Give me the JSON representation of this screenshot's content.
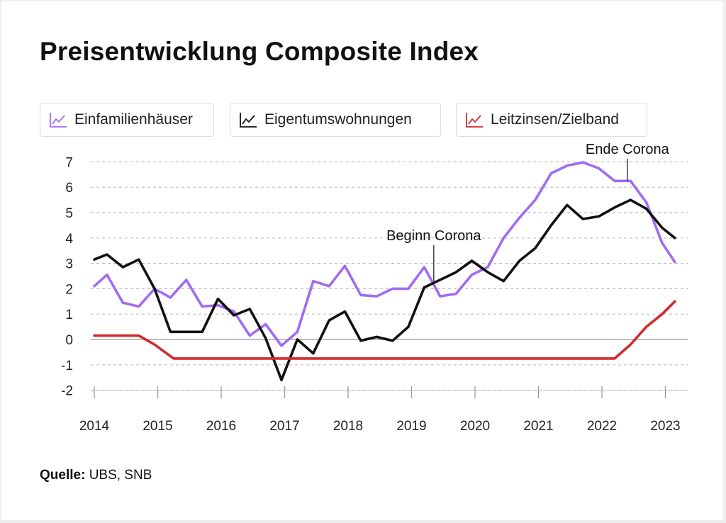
{
  "title": "Preisentwicklung Composite Index",
  "legend": [
    {
      "label": "Einfamilienhäuser",
      "color": "#a06cf2",
      "icon": "line-chart-icon"
    },
    {
      "label": "Eigentumswohnungen",
      "color": "#111111",
      "icon": "line-chart-icon"
    },
    {
      "label": "Leitzinsen/Zielband",
      "color": "#d12b2b",
      "icon": "line-chart-icon"
    }
  ],
  "source": {
    "label": "Quelle:",
    "text": "UBS, SNB"
  },
  "chart_data": {
    "type": "line",
    "title": "Preisentwicklung Composite Index",
    "xlabel": "",
    "ylabel": "",
    "xlim": [
      2014,
      2023.15
    ],
    "ylim": [
      -2,
      7
    ],
    "yticks": [
      -2,
      -1,
      0,
      1,
      2,
      3,
      4,
      5,
      6,
      7
    ],
    "xticks": [
      2014,
      2015,
      2016,
      2017,
      2018,
      2019,
      2020,
      2021,
      2022,
      2023
    ],
    "grid": "horizontal dashed",
    "legend_position": "top",
    "series": [
      {
        "name": "Einfamilienhäuser",
        "color": "#a06cf2",
        "points": [
          [
            2014.0,
            2.1
          ],
          [
            2014.2,
            2.55
          ],
          [
            2014.45,
            1.45
          ],
          [
            2014.7,
            1.3
          ],
          [
            2014.95,
            2.0
          ],
          [
            2015.2,
            1.65
          ],
          [
            2015.45,
            2.35
          ],
          [
            2015.7,
            1.3
          ],
          [
            2015.95,
            1.35
          ],
          [
            2016.2,
            1.1
          ],
          [
            2016.45,
            0.15
          ],
          [
            2016.7,
            0.6
          ],
          [
            2016.95,
            -0.25
          ],
          [
            2017.2,
            0.3
          ],
          [
            2017.45,
            2.3
          ],
          [
            2017.7,
            2.1
          ],
          [
            2017.95,
            2.9
          ],
          [
            2018.2,
            1.75
          ],
          [
            2018.45,
            1.7
          ],
          [
            2018.7,
            2.0
          ],
          [
            2018.95,
            2.0
          ],
          [
            2019.2,
            2.85
          ],
          [
            2019.45,
            1.7
          ],
          [
            2019.7,
            1.8
          ],
          [
            2019.95,
            2.55
          ],
          [
            2020.2,
            2.85
          ],
          [
            2020.45,
            4.0
          ],
          [
            2020.7,
            4.8
          ],
          [
            2020.95,
            5.5
          ],
          [
            2021.2,
            6.55
          ],
          [
            2021.45,
            6.85
          ],
          [
            2021.7,
            6.98
          ],
          [
            2021.95,
            6.75
          ],
          [
            2022.2,
            6.25
          ],
          [
            2022.45,
            6.25
          ],
          [
            2022.7,
            5.4
          ],
          [
            2022.95,
            3.8
          ],
          [
            2023.15,
            3.05
          ]
        ]
      },
      {
        "name": "Eigentumswohnungen",
        "color": "#111111",
        "points": [
          [
            2014.0,
            3.15
          ],
          [
            2014.2,
            3.35
          ],
          [
            2014.45,
            2.85
          ],
          [
            2014.7,
            3.15
          ],
          [
            2014.95,
            2.0
          ],
          [
            2015.2,
            0.3
          ],
          [
            2015.45,
            0.3
          ],
          [
            2015.7,
            0.3
          ],
          [
            2015.95,
            1.6
          ],
          [
            2016.2,
            0.95
          ],
          [
            2016.45,
            1.2
          ],
          [
            2016.7,
            0.05
          ],
          [
            2016.95,
            -1.6
          ],
          [
            2017.2,
            0.0
          ],
          [
            2017.45,
            -0.55
          ],
          [
            2017.7,
            0.75
          ],
          [
            2017.95,
            1.1
          ],
          [
            2018.2,
            -0.05
          ],
          [
            2018.45,
            0.1
          ],
          [
            2018.7,
            -0.05
          ],
          [
            2018.95,
            0.5
          ],
          [
            2019.2,
            2.05
          ],
          [
            2019.45,
            2.35
          ],
          [
            2019.7,
            2.65
          ],
          [
            2019.95,
            3.1
          ],
          [
            2020.2,
            2.65
          ],
          [
            2020.45,
            2.3
          ],
          [
            2020.7,
            3.1
          ],
          [
            2020.95,
            3.6
          ],
          [
            2021.2,
            4.5
          ],
          [
            2021.45,
            5.3
          ],
          [
            2021.7,
            4.75
          ],
          [
            2021.95,
            4.85
          ],
          [
            2022.2,
            5.2
          ],
          [
            2022.45,
            5.5
          ],
          [
            2022.7,
            5.15
          ],
          [
            2022.95,
            4.4
          ],
          [
            2023.15,
            4.0
          ]
        ]
      },
      {
        "name": "Leitzinsen/Zielband",
        "color": "#d12b2b",
        "points": [
          [
            2014.0,
            0.15
          ],
          [
            2014.7,
            0.15
          ],
          [
            2014.95,
            -0.2
          ],
          [
            2015.25,
            -0.75
          ],
          [
            2022.2,
            -0.75
          ],
          [
            2022.45,
            -0.2
          ],
          [
            2022.7,
            0.5
          ],
          [
            2022.95,
            1.0
          ],
          [
            2023.15,
            1.5
          ]
        ]
      }
    ],
    "annotations": [
      {
        "text": "Beginn Corona",
        "x": 2019.35,
        "y": 2.3,
        "anchor": "line-top"
      },
      {
        "text": "Ende Corona",
        "x": 2022.4,
        "y": 6.25,
        "anchor": "line-top"
      }
    ]
  }
}
